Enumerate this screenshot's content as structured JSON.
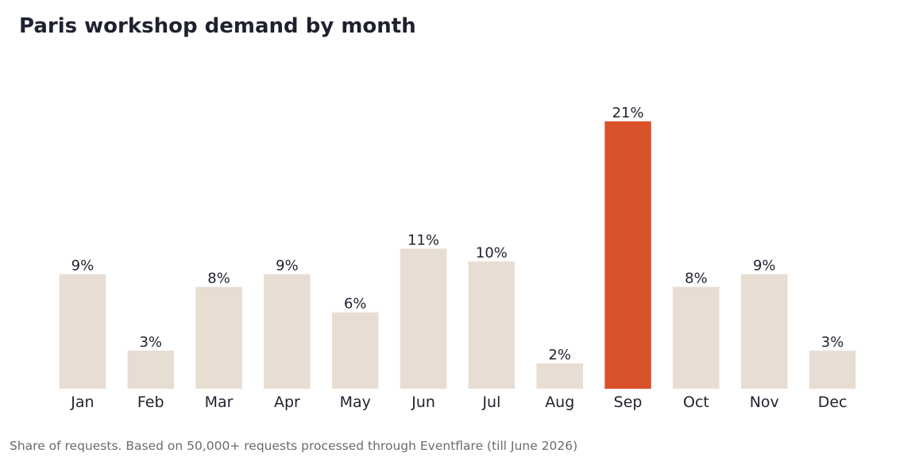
{
  "chart_data": {
    "type": "bar",
    "title": "Paris workshop demand by month",
    "subtitle": "",
    "xlabel": "",
    "ylabel": "",
    "categories": [
      "Jan",
      "Feb",
      "Mar",
      "Apr",
      "May",
      "Jun",
      "Jul",
      "Aug",
      "Sep",
      "Oct",
      "Nov",
      "Dec"
    ],
    "values": [
      9,
      3,
      8,
      9,
      6,
      11,
      10,
      2,
      21,
      8,
      9,
      3
    ],
    "value_labels": [
      "9%",
      "3%",
      "8%",
      "9%",
      "6%",
      "11%",
      "10%",
      "2%",
      "21%",
      "8%",
      "9%",
      "3%"
    ],
    "unit": "%",
    "ylim": [
      0,
      24
    ],
    "highlight_category": "Sep",
    "grid": false,
    "y_axis_visible": false,
    "colors": {
      "bar": "#e8ddd3",
      "highlight": "#d9522c",
      "text": "#1f2130",
      "footnote": "#6b6b73"
    },
    "footnote": "Share of requests. Based on 50,000+ requests processed through Eventflare (till June 2026)"
  }
}
